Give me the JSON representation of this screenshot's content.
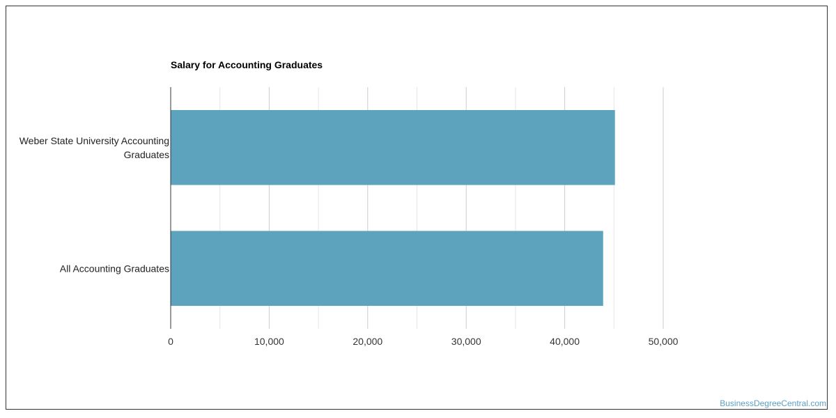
{
  "chart_data": {
    "type": "bar",
    "orientation": "horizontal",
    "title": "Salary for Accounting Graduates",
    "categories": [
      [
        "Weber State University Accounting",
        "Graduates"
      ],
      [
        "All Accounting Graduates"
      ]
    ],
    "values": [
      45100,
      43900
    ],
    "xlim": [
      0,
      50000
    ],
    "xticks": [
      0,
      10000,
      20000,
      30000,
      40000,
      50000
    ],
    "xtick_labels": [
      "0",
      "10,000",
      "20,000",
      "30,000",
      "40,000",
      "50,000"
    ],
    "grid": true,
    "bar_color": "#5ea3be",
    "grid_color": "#d9d9d9"
  },
  "watermark": "BusinessDegreeCentral.com"
}
